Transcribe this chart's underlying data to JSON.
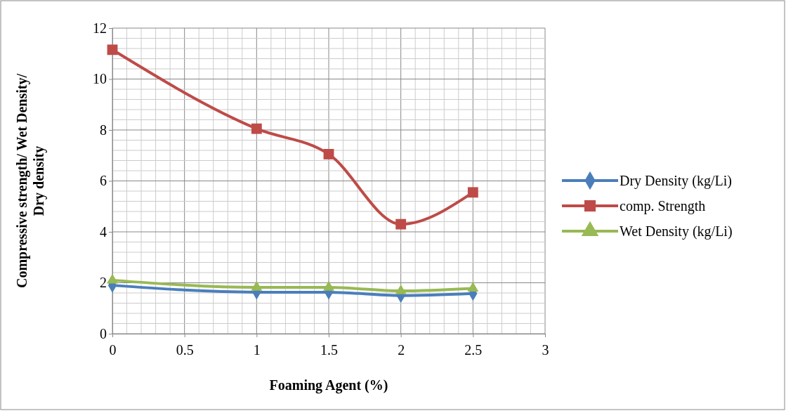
{
  "chart_data": {
    "type": "line",
    "xlabel": "Foaming Agent (%)",
    "ylabel": "Compressive strength/ Wet Density/ Dry density",
    "x": [
      0,
      1,
      1.5,
      2,
      2.5
    ],
    "series": [
      {
        "name": "Dry Density (kg/Li)",
        "color": "#4a7ebb",
        "marker": "diamond",
        "values": [
          1.9,
          1.63,
          1.63,
          1.5,
          1.58
        ]
      },
      {
        "name": "comp. Strength",
        "color": "#be4b48",
        "marker": "square",
        "values": [
          11.15,
          8.05,
          7.05,
          4.3,
          5.55
        ]
      },
      {
        "name": "Wet Density (kg/Li)",
        "color": "#98b954",
        "marker": "triangle",
        "values": [
          2.1,
          1.82,
          1.82,
          1.68,
          1.78
        ]
      }
    ],
    "xlim": [
      0,
      3
    ],
    "xticks": [
      0,
      0.5,
      1,
      1.5,
      2,
      2.5,
      3
    ],
    "ylim": [
      0,
      12
    ],
    "yticks": [
      0,
      2,
      4,
      6,
      8,
      10,
      12
    ],
    "grid": true,
    "legend": "right",
    "line_style": "solid"
  }
}
